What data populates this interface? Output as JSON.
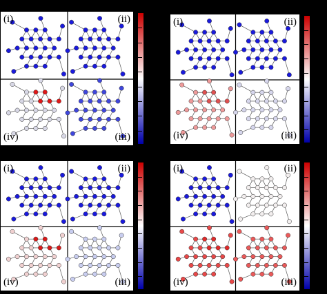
{
  "panels": [
    {
      "labels": [
        "(i)",
        "(ii)",
        "(iii)",
        "(iv)"
      ],
      "quadrant_colors": [
        "#1a1adc",
        "#1a1adc",
        "#3f46dc",
        "#d8d8e6"
      ],
      "hot_cluster_color": "#e01818"
    },
    {
      "labels": [
        "(i)",
        "(ii)",
        "(iii)",
        "(iv)"
      ],
      "quadrant_colors": [
        "#1a1adc",
        "#1a1adc",
        "#d6d6ec",
        "#ee9a9a"
      ],
      "hot_cluster_color": "#e05050"
    },
    {
      "labels": [
        "(i)",
        "(ii)",
        "(iii)",
        "(iv)"
      ],
      "quadrant_colors": [
        "#1a1adc",
        "#1a1adc",
        "#c8cdef",
        "#f0d0d0"
      ],
      "hot_cluster_color": "#d81a1a"
    },
    {
      "labels": [
        "(i)",
        "(ii)",
        "(iii)",
        "(iv)"
      ],
      "quadrant_colors": [
        "#1a1adc",
        "#f2eeee",
        "#ea5a5a",
        "#e84848"
      ],
      "hot_cluster_color": "#e02a2a"
    }
  ],
  "colorbar": {
    "colors": [
      "#cc0000",
      "#ffffff",
      "#0000aa"
    ],
    "tick_count": 9
  }
}
